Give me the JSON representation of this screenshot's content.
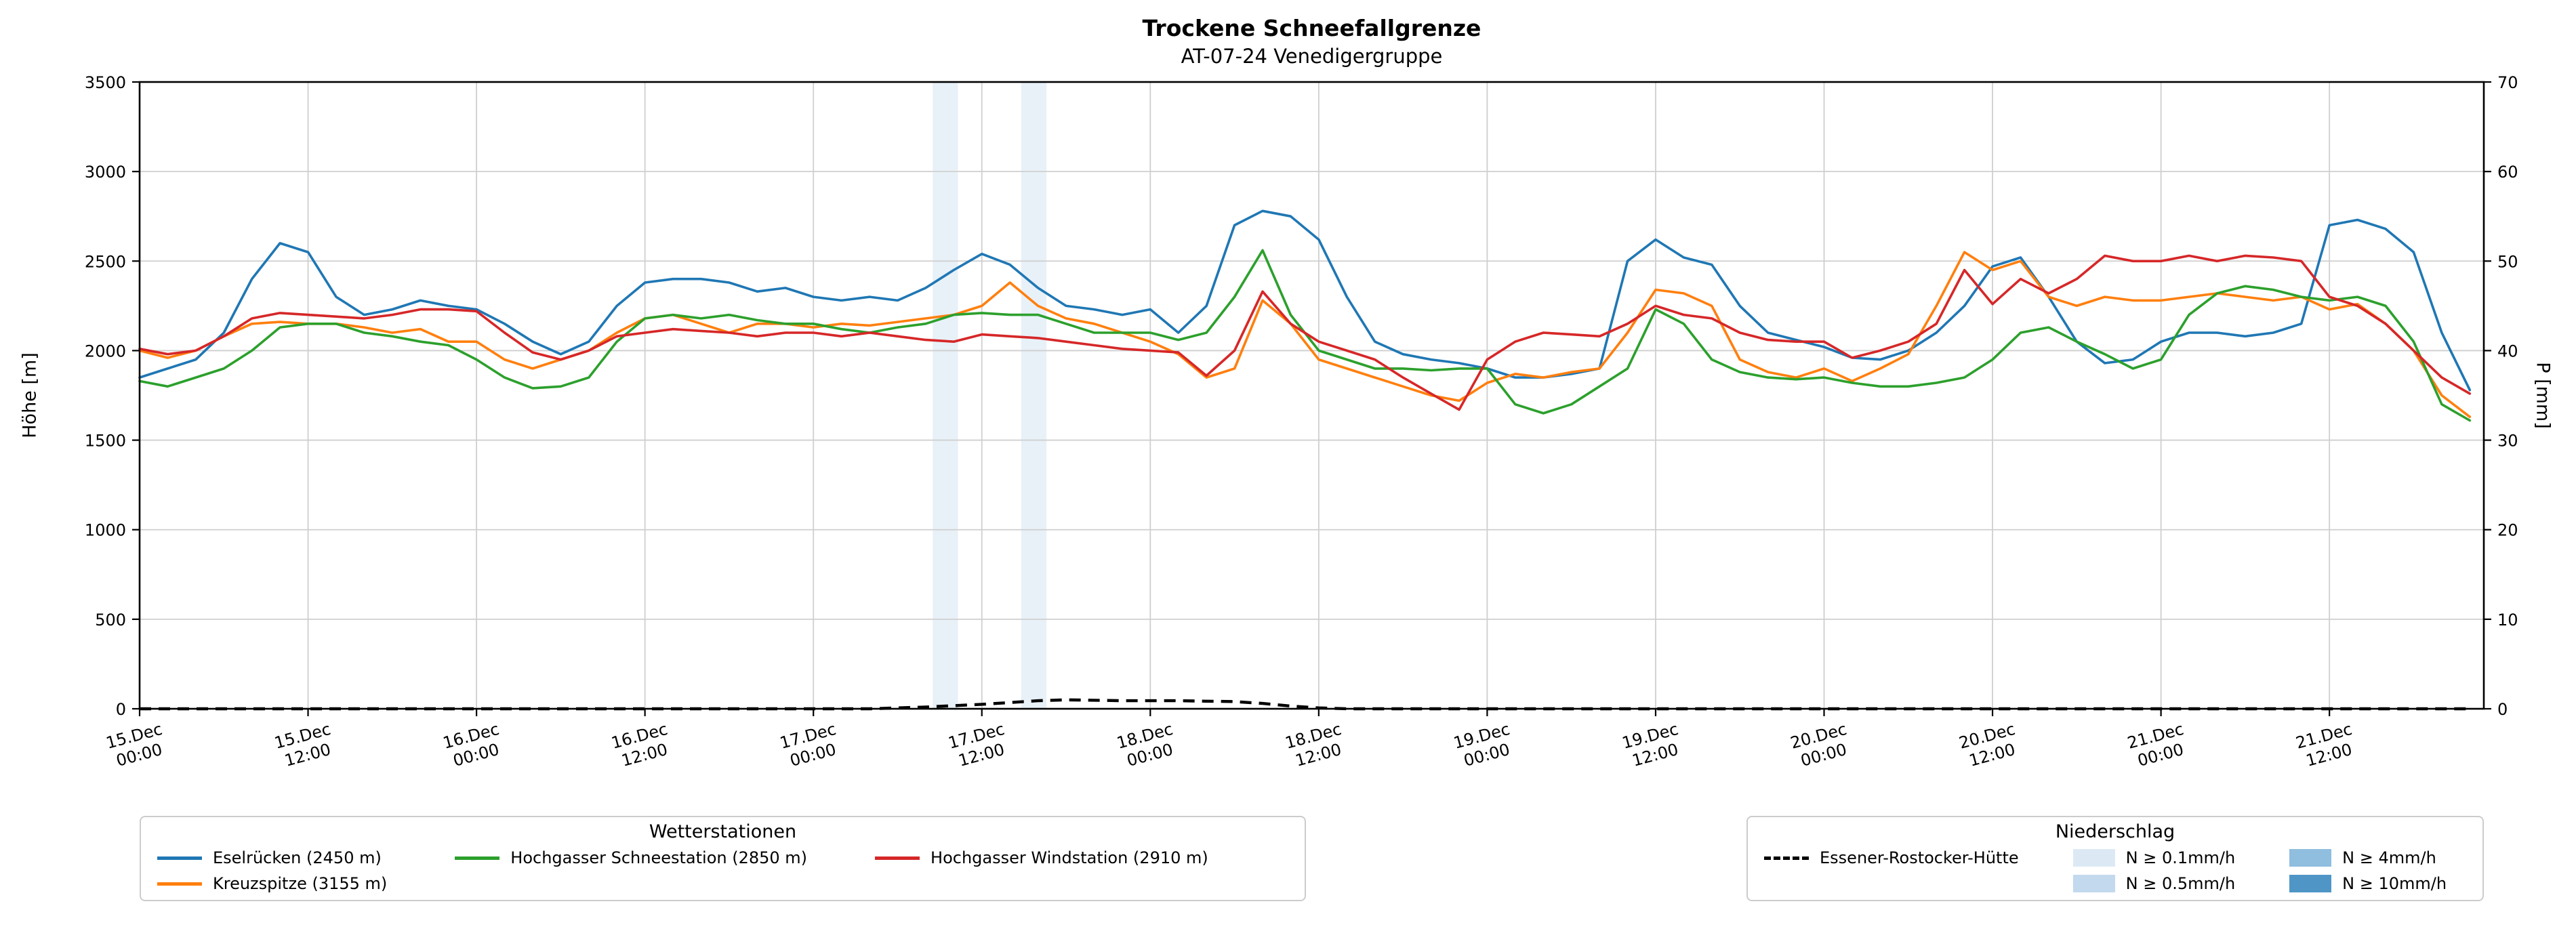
{
  "title": "Trockene Schneefallgrenze",
  "subtitle": "AT-07-24 Venedigergruppe",
  "chart_data": {
    "type": "line",
    "title": "Trockene Schneefallgrenze",
    "subtitle": "AT-07-24 Venedigergruppe",
    "ylabel_left": "Höhe [m]",
    "ylabel_right": "P [mm]",
    "x_unit": "hours since 15.Dec 00:00",
    "x_step": 2,
    "x_range": [
      0,
      167
    ],
    "ylim_left": [
      0,
      3500
    ],
    "ylim_right": [
      0,
      70
    ],
    "grid": true,
    "legend_position": "below",
    "y_left_ticks": [
      0,
      500,
      1000,
      1500,
      2000,
      2500,
      3000,
      3500
    ],
    "y_right_ticks": [
      0,
      10,
      20,
      30,
      40,
      50,
      60,
      70
    ],
    "x_ticks": [
      {
        "h": 0,
        "date": "15.Dec",
        "time": "00:00"
      },
      {
        "h": 12,
        "date": "15.Dec",
        "time": "12:00"
      },
      {
        "h": 24,
        "date": "16.Dec",
        "time": "00:00"
      },
      {
        "h": 36,
        "date": "16.Dec",
        "time": "12:00"
      },
      {
        "h": 48,
        "date": "17.Dec",
        "time": "00:00"
      },
      {
        "h": 60,
        "date": "17.Dec",
        "time": "12:00"
      },
      {
        "h": 72,
        "date": "18.Dec",
        "time": "00:00"
      },
      {
        "h": 84,
        "date": "18.Dec",
        "time": "12:00"
      },
      {
        "h": 96,
        "date": "19.Dec",
        "time": "00:00"
      },
      {
        "h": 108,
        "date": "19.Dec",
        "time": "12:00"
      },
      {
        "h": 120,
        "date": "20.Dec",
        "time": "00:00"
      },
      {
        "h": 132,
        "date": "20.Dec",
        "time": "12:00"
      },
      {
        "h": 144,
        "date": "21.Dec",
        "time": "00:00"
      },
      {
        "h": 156,
        "date": "21.Dec",
        "time": "12:00"
      }
    ],
    "series": [
      {
        "name": "Eselrücken (2450 m)",
        "color": "#1f77b4",
        "axis": "left",
        "values": [
          1850,
          1900,
          1950,
          2100,
          2400,
          2600,
          2550,
          2300,
          2200,
          2230,
          2280,
          2250,
          2230,
          2150,
          2050,
          1980,
          2050,
          2250,
          2380,
          2400,
          2400,
          2380,
          2330,
          2350,
          2300,
          2280,
          2300,
          2280,
          2350,
          2450,
          2540,
          2480,
          2350,
          2250,
          2230,
          2200,
          2230,
          2100,
          2250,
          2700,
          2780,
          2750,
          2620,
          2300,
          2050,
          1980,
          1950,
          1930,
          1900,
          1850,
          1850,
          1870,
          1900,
          2500,
          2620,
          2520,
          2480,
          2250,
          2100,
          2060,
          2020,
          1960,
          1950,
          2000,
          2100,
          2250,
          2470,
          2520,
          2300,
          2050,
          1930,
          1950,
          2050,
          2100,
          2100,
          2080,
          2100,
          2150,
          2700,
          2730,
          2680,
          2550,
          2100,
          1780
        ]
      },
      {
        "name": "Kreuzspitze (3155 m)",
        "color": "#ff7f0e",
        "axis": "left",
        "values": [
          2000,
          1960,
          2000,
          2080,
          2150,
          2160,
          2150,
          2150,
          2130,
          2100,
          2120,
          2050,
          2050,
          1950,
          1900,
          1950,
          2000,
          2100,
          2180,
          2200,
          2150,
          2100,
          2150,
          2150,
          2130,
          2150,
          2140,
          2160,
          2180,
          2200,
          2250,
          2380,
          2250,
          2180,
          2150,
          2100,
          2050,
          1980,
          1850,
          1900,
          2280,
          2150,
          1950,
          1900,
          1850,
          1800,
          1750,
          1720,
          1820,
          1870,
          1850,
          1880,
          1900,
          2100,
          2340,
          2320,
          2250,
          1950,
          1880,
          1850,
          1900,
          1830,
          1900,
          1980,
          2250,
          2550,
          2450,
          2500,
          2300,
          2250,
          2300,
          2280,
          2280,
          2300,
          2320,
          2300,
          2280,
          2300,
          2230,
          2260,
          2150,
          2000,
          1750,
          1630
        ]
      },
      {
        "name": "Hochgasser Schneestation (2850 m)",
        "color": "#2ca02c",
        "axis": "left",
        "values": [
          1830,
          1800,
          1850,
          1900,
          2000,
          2130,
          2150,
          2150,
          2100,
          2080,
          2050,
          2030,
          1950,
          1850,
          1790,
          1800,
          1850,
          2050,
          2180,
          2200,
          2180,
          2200,
          2170,
          2150,
          2150,
          2120,
          2100,
          2130,
          2150,
          2200,
          2210,
          2200,
          2200,
          2150,
          2100,
          2100,
          2100,
          2060,
          2100,
          2300,
          2560,
          2200,
          2000,
          1950,
          1900,
          1900,
          1890,
          1900,
          1900,
          1700,
          1650,
          1700,
          1800,
          1900,
          2230,
          2150,
          1950,
          1880,
          1850,
          1840,
          1850,
          1820,
          1800,
          1800,
          1820,
          1850,
          1950,
          2100,
          2130,
          2050,
          1980,
          1900,
          1950,
          2200,
          2320,
          2360,
          2340,
          2300,
          2280,
          2300,
          2250,
          2050,
          1700,
          1610
        ]
      },
      {
        "name": "Hochgasser Windstation (2910 m)",
        "color": "#d62728",
        "axis": "left",
        "values": [
          2010,
          1980,
          2000,
          2080,
          2180,
          2210,
          2200,
          2190,
          2180,
          2200,
          2230,
          2230,
          2220,
          2100,
          1990,
          1950,
          2000,
          2080,
          2100,
          2120,
          2110,
          2100,
          2080,
          2100,
          2100,
          2080,
          2100,
          2080,
          2060,
          2050,
          2090,
          2080,
          2070,
          2050,
          2030,
          2010,
          2000,
          1990,
          1860,
          2000,
          2330,
          2150,
          2050,
          2000,
          1950,
          1850,
          1760,
          1670,
          1950,
          2050,
          2100,
          2090,
          2080,
          2150,
          2250,
          2200,
          2180,
          2100,
          2060,
          2050,
          2050,
          1960,
          2000,
          2050,
          2150,
          2450,
          2260,
          2400,
          2320,
          2400,
          2530,
          2500,
          2500,
          2530,
          2500,
          2530,
          2520,
          2500,
          2300,
          2250,
          2150,
          2000,
          1850,
          1760
        ]
      }
    ],
    "precip_line": {
      "name": "Essener-Rostocker-Hütte",
      "color": "#000000",
      "axis": "right",
      "style": "dashed",
      "values": [
        0,
        0,
        0,
        0,
        0,
        0,
        0,
        0,
        0,
        0,
        0,
        0,
        0,
        0,
        0,
        0,
        0,
        0,
        0,
        0,
        0,
        0,
        0,
        0,
        0,
        0,
        0,
        0.1,
        0.2,
        0.35,
        0.5,
        0.7,
        0.9,
        1,
        0.95,
        0.9,
        0.9,
        0.9,
        0.85,
        0.8,
        0.6,
        0.3,
        0.1,
        0,
        0,
        0,
        0,
        0,
        0,
        0,
        0,
        0,
        0,
        0,
        0,
        0,
        0,
        0,
        0,
        0,
        0,
        0,
        0,
        0,
        0,
        0,
        0,
        0,
        0,
        0,
        0,
        0,
        0,
        0,
        0,
        0,
        0,
        0,
        0,
        0,
        0,
        0,
        0,
        0
      ]
    },
    "precip_bands": [
      {
        "start_h": 56.5,
        "end_h": 58.3,
        "level": "N ≥ 0.1mm/h",
        "color": "#dce9f5"
      },
      {
        "start_h": 62.8,
        "end_h": 64.6,
        "level": "N ≥ 0.1mm/h",
        "color": "#dce9f5"
      }
    ]
  },
  "legend_stations": {
    "title": "Wetterstationen",
    "items": [
      {
        "label": "Eselrücken (2450 m)",
        "color": "#1f77b4"
      },
      {
        "label": "Hochgasser Schneestation (2850 m)",
        "color": "#2ca02c"
      },
      {
        "label": "Hochgasser Windstation (2910 m)",
        "color": "#d62728"
      },
      {
        "label": "Kreuzspitze (3155 m)",
        "color": "#ff7f0e"
      }
    ]
  },
  "legend_precip": {
    "title": "Niederschlag",
    "line": {
      "label": "Essener-Rostocker-Hütte",
      "color": "#000000"
    },
    "patches": [
      {
        "label": "N ≥ 0.1mm/h",
        "color": "#dce9f5"
      },
      {
        "label": "N ≥ 0.5mm/h",
        "color": "#c3d9ee"
      },
      {
        "label": "N ≥ 4mm/h",
        "color": "#8fbedf"
      },
      {
        "label": "N ≥ 10mm/h",
        "color": "#4f96c7"
      }
    ]
  }
}
